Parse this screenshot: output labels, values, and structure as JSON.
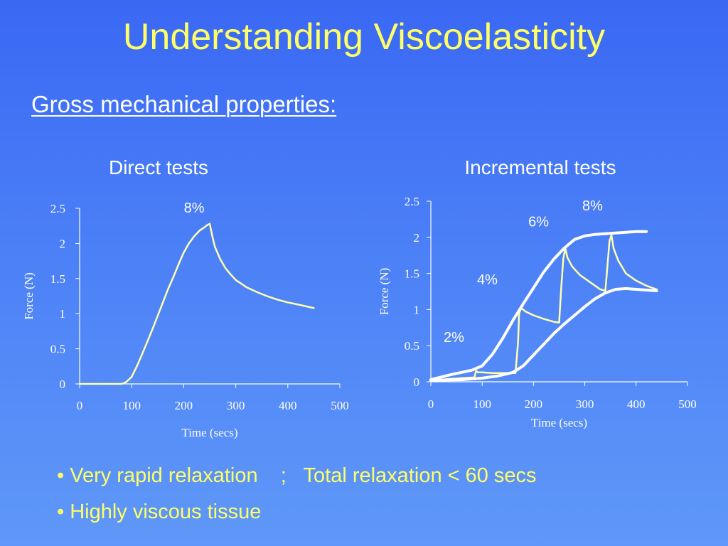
{
  "slide": {
    "title": "Understanding Viscoelasticity",
    "subtitle": "Gross mechanical properties:"
  },
  "colors": {
    "background_top": "#3a68f4",
    "background_bottom": "#5f98f8",
    "title": "#ffff66",
    "bullets": "#ffff66",
    "curve": "#ffffaa",
    "envelope": "#ffffff",
    "text": "#ffffff"
  },
  "bullets": [
    "• Very rapid relaxation    ;   Total relaxation < 60 secs",
    "• Highly viscous tissue"
  ],
  "chart_data": [
    {
      "type": "line",
      "title": "Direct tests",
      "xlabel": "Time (secs)",
      "ylabel": "Force (N)",
      "xlim": [
        0,
        500
      ],
      "ylim": [
        0,
        2.5
      ],
      "xticks": [
        "0",
        "100",
        "200",
        "300",
        "400",
        "500"
      ],
      "yticks": [
        "0",
        "0.5",
        "1",
        "1.5",
        "2",
        "2.5"
      ],
      "grid": false,
      "series": [
        {
          "x": [
            0,
            50,
            80,
            85,
            90,
            100,
            110,
            120,
            130,
            140,
            150,
            160,
            170,
            180,
            190,
            200,
            210,
            220,
            230,
            240,
            245,
            250,
            255,
            260,
            270,
            280,
            290,
            300,
            320,
            340,
            360,
            380,
            400,
            420,
            450
          ],
          "y": [
            0,
            0,
            0,
            0.01,
            0.03,
            0.1,
            0.25,
            0.42,
            0.6,
            0.78,
            0.97,
            1.16,
            1.35,
            1.52,
            1.7,
            1.87,
            2.0,
            2.1,
            2.18,
            2.23,
            2.26,
            2.28,
            2.1,
            1.95,
            1.78,
            1.65,
            1.56,
            1.48,
            1.38,
            1.31,
            1.25,
            1.2,
            1.16,
            1.13,
            1.08
          ]
        }
      ],
      "annotations": [
        {
          "text": "8%",
          "x": 220,
          "y": 2.44
        }
      ]
    },
    {
      "type": "line",
      "title": "Incremental tests",
      "xlabel": "Time (secs)",
      "ylabel": "Force (N)",
      "xlim": [
        0,
        500
      ],
      "ylim": [
        0,
        2.5
      ],
      "xticks": [
        "0",
        "100",
        "200",
        "300",
        "400",
        "500"
      ],
      "yticks": [
        "0",
        "0.5",
        "1",
        "1.5",
        "2",
        "2.5"
      ],
      "grid": false,
      "series": [
        {
          "x": [
            0,
            20,
            40,
            60,
            85,
            88,
            92,
            100,
            120,
            150,
            165,
            170,
            172,
            176,
            185,
            200,
            220,
            240,
            250,
            254,
            258,
            262,
            266,
            275,
            290,
            310,
            330,
            340,
            344,
            348,
            352,
            356,
            365,
            380,
            400,
            420,
            440
          ],
          "y": [
            0.02,
            0.03,
            0.04,
            0.05,
            0.06,
            0.15,
            0.13,
            0.13,
            0.12,
            0.12,
            0.12,
            0.55,
            0.95,
            1.02,
            0.97,
            0.92,
            0.87,
            0.83,
            0.82,
            1.3,
            1.7,
            1.85,
            1.72,
            1.6,
            1.48,
            1.38,
            1.28,
            1.26,
            1.6,
            1.95,
            2.03,
            1.85,
            1.68,
            1.5,
            1.4,
            1.33,
            1.28
          ]
        },
        {
          "x": [
            0,
            40,
            80,
            100,
            120,
            140,
            160,
            180,
            200,
            220,
            240,
            260,
            280,
            300,
            320,
            340,
            360,
            380,
            400,
            420
          ],
          "y": [
            0.03,
            0.1,
            0.16,
            0.22,
            0.38,
            0.6,
            0.85,
            1.08,
            1.3,
            1.52,
            1.7,
            1.85,
            1.97,
            2.02,
            2.04,
            2.05,
            2.06,
            2.07,
            2.08,
            2.08
          ]
        },
        {
          "x": [
            0,
            60,
            100,
            130,
            160,
            180,
            200,
            220,
            240,
            260,
            280,
            300,
            320,
            340,
            360,
            380,
            400,
            420,
            440
          ],
          "y": [
            0.02,
            0.03,
            0.05,
            0.08,
            0.13,
            0.22,
            0.37,
            0.52,
            0.67,
            0.8,
            0.92,
            1.04,
            1.15,
            1.23,
            1.28,
            1.29,
            1.28,
            1.27,
            1.26
          ]
        }
      ],
      "annotations": [
        {
          "text": "2%",
          "x": 45,
          "y": 0.55
        },
        {
          "text": "4%",
          "x": 110,
          "y": 1.35
        },
        {
          "text": "6%",
          "x": 210,
          "y": 2.15
        },
        {
          "text": "8%",
          "x": 315,
          "y": 2.37
        }
      ]
    }
  ]
}
